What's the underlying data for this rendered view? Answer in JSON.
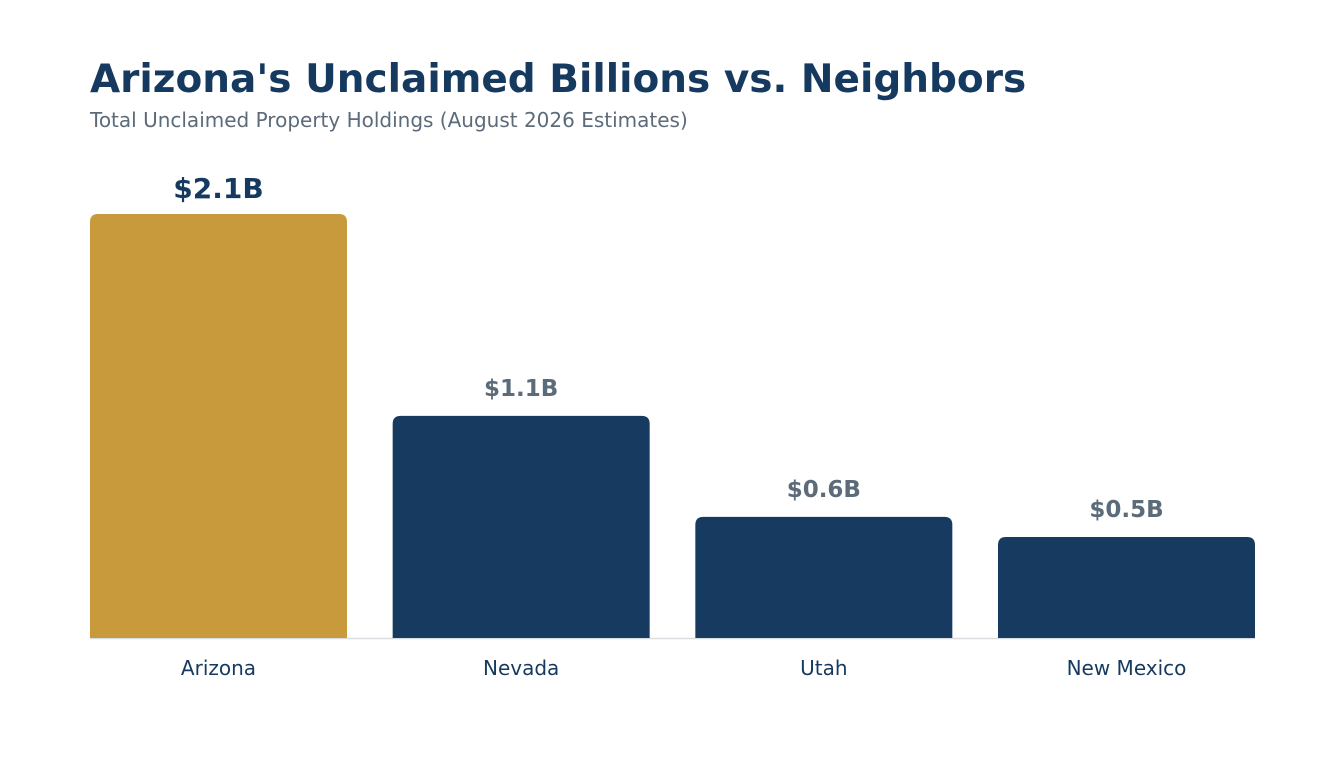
{
  "chart_data": {
    "type": "bar",
    "title": "Arizona's Unclaimed Billions vs. Neighbors",
    "subtitle": "Total Unclaimed Property Holdings (August 2026 Estimates)",
    "xlabel": "",
    "ylabel": "",
    "categories": [
      "Arizona",
      "Nevada",
      "Utah",
      "New Mexico"
    ],
    "values": [
      2.1,
      1.1,
      0.6,
      0.5
    ],
    "value_labels": [
      "$2.1B",
      "$1.1B",
      "$0.6B",
      "$0.5B"
    ],
    "ylim": [
      0,
      2.1
    ],
    "grid": false,
    "legend": "none",
    "highlight_category": "Arizona",
    "colors": {
      "highlight": "#c99a3c",
      "default": "#173a60",
      "highlight_label": "#163a5f",
      "default_label": "#5c6b7a",
      "category_label": "#163a5f",
      "baseline": "#d9dde2"
    }
  }
}
